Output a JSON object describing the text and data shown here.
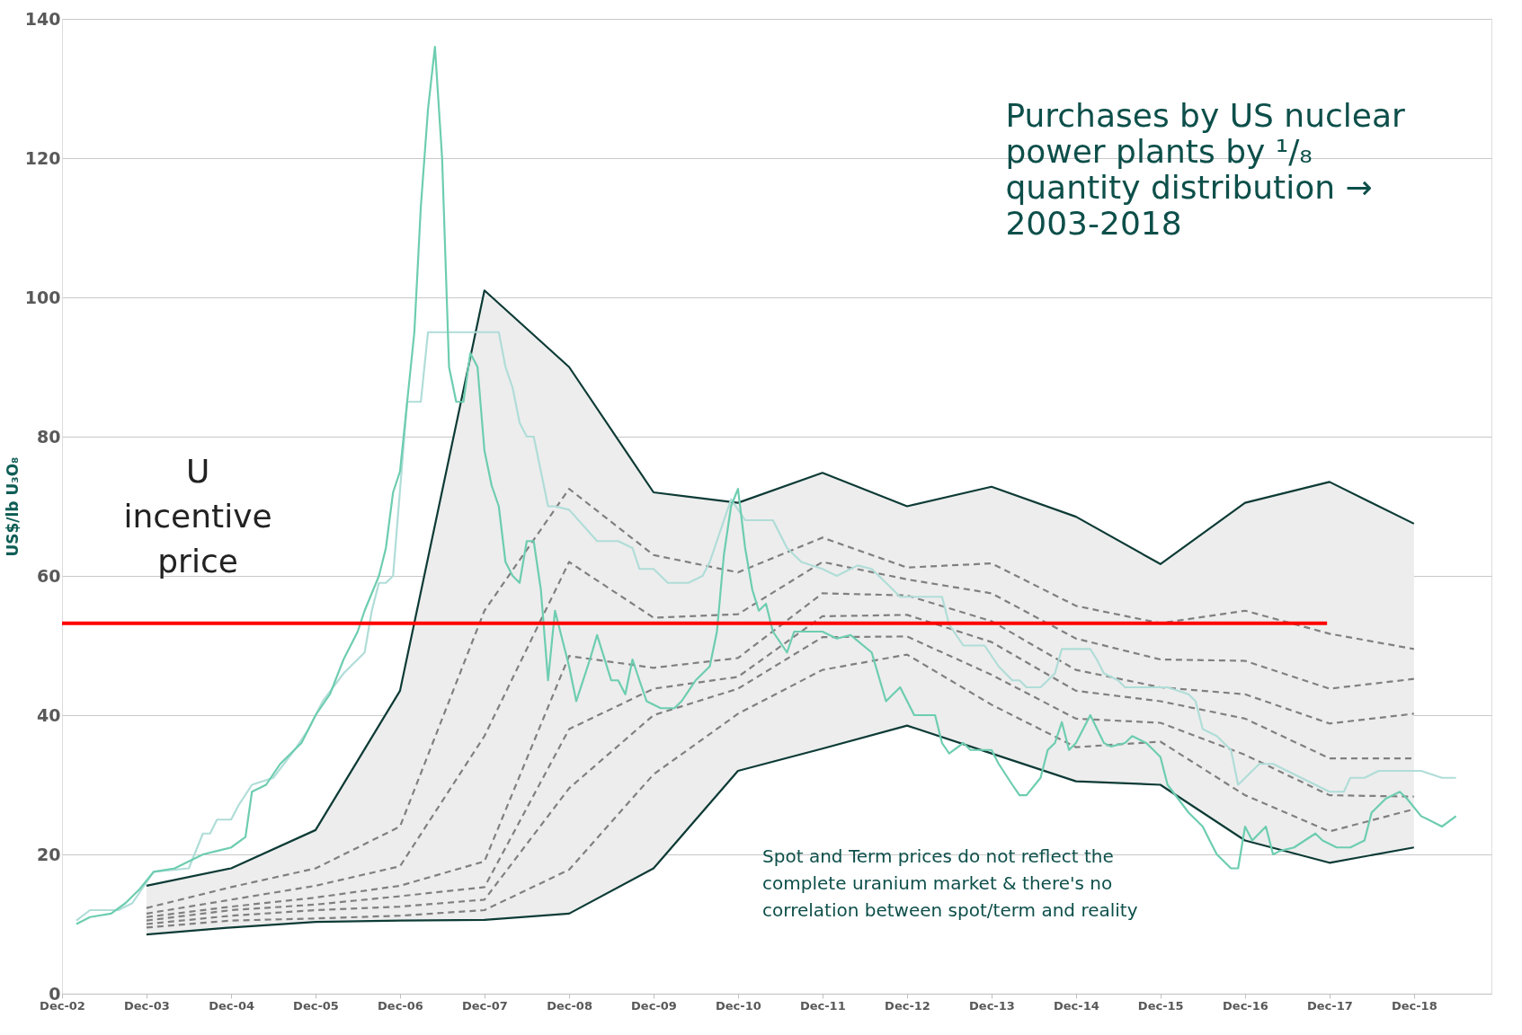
{
  "chart_data": {
    "type": "line",
    "ylabel": "US$/lb U₃O₈",
    "x": [
      "2003-12",
      "2004-12",
      "2005-12",
      "2006-12",
      "2007-12",
      "2008-12",
      "2009-12",
      "2010-12",
      "2011-12",
      "2012-12",
      "2013-12",
      "2014-12",
      "2015-12",
      "2016-12",
      "2017-12",
      "2018-12"
    ],
    "series": [
      {
        "color": "#0d3b36",
        "line_style": "solid",
        "values": [
          15.5,
          18,
          23.5,
          43.5,
          101,
          90,
          72,
          70.5,
          74.8,
          70,
          72.8,
          68.5,
          61.7,
          70.5,
          73.5,
          67.5
        ],
        "upper": [
          15.5,
          18,
          23.5,
          43.5,
          101,
          90,
          72,
          70.5,
          74.8,
          70,
          72.8,
          68.5,
          61.7,
          70.5,
          73.5,
          67.5
        ],
        "lower": [
          8.5,
          9.5,
          10.3,
          10.5,
          10.6,
          11.5,
          18,
          32,
          35.2,
          38.5,
          34.5,
          30.5,
          30,
          22,
          18.8,
          21
        ]
      },
      {
        "color": "#0d3b36",
        "line_style": "solid",
        "values": [
          8.5,
          9.5,
          10.3,
          10.5,
          10.6,
          11.5,
          18,
          32,
          35.2,
          38.5,
          34.5,
          30.5,
          30,
          22,
          18.8,
          21
        ]
      },
      {
        "color": "#808080",
        "line_style": "dashed",
        "values": [
          12.3,
          15.3,
          18,
          24,
          55,
          72.5,
          63,
          60.5,
          65.5,
          61.2,
          61.8,
          55.7,
          53.2,
          55,
          51.7,
          49.5
        ]
      },
      {
        "color": "#808080",
        "line_style": "dashed",
        "values": [
          11.5,
          13.5,
          15.5,
          18.3,
          37,
          62,
          54,
          54.5,
          62,
          59.5,
          57.5,
          51,
          48,
          47.8,
          43.8,
          45.2
        ]
      },
      {
        "color": "#808080",
        "line_style": "dashed",
        "values": [
          11,
          12.5,
          13.8,
          15.5,
          19,
          48.5,
          46.8,
          48.2,
          57.5,
          57.2,
          53.5,
          46.5,
          44,
          43,
          38.8,
          40.2
        ]
      },
      {
        "color": "#808080",
        "line_style": "dashed",
        "values": [
          10.5,
          12,
          12.8,
          14,
          15.3,
          38,
          43.8,
          45.5,
          54.2,
          54.4,
          50.5,
          43.5,
          42,
          39.5,
          33.8,
          33.8
        ]
      },
      {
        "color": "#808080",
        "line_style": "dashed",
        "values": [
          10,
          11.2,
          12,
          12.5,
          13.5,
          29.5,
          40,
          43.8,
          51.2,
          51.3,
          45.8,
          39.5,
          38.9,
          34.3,
          28.5,
          28.3
        ]
      },
      {
        "color": "#808080",
        "line_style": "dashed",
        "values": [
          9.5,
          10.5,
          10.8,
          11.2,
          12,
          17.8,
          31.5,
          40.2,
          46.5,
          48.7,
          41.5,
          35.4,
          36.2,
          28.5,
          23.3,
          26.5
        ]
      },
      {
        "color": "#b0ddd8",
        "line_style": "solid",
        "x": [
          "2003-02",
          "2003-04",
          "2003-08",
          "2003-10",
          "2003-12",
          "2004-01",
          "2004-06",
          "2004-08",
          "2004-09",
          "2004-10",
          "2004-12",
          "2005-01",
          "2005-03",
          "2005-06",
          "2005-09",
          "2005-11",
          "2006-01",
          "2006-04",
          "2006-05",
          "2006-07",
          "2006-08",
          "2006-09",
          "2006-10",
          "2006-11",
          "2007-01",
          "2007-03",
          "2007-04",
          "2008-02",
          "2008-03",
          "2008-04",
          "2008-05",
          "2008-06",
          "2008-07",
          "2008-09",
          "2008-10",
          "2008-12",
          "2009-04",
          "2009-07",
          "2009-09",
          "2009-10",
          "2009-12",
          "2010-02",
          "2010-05",
          "2010-07",
          "2010-08",
          "2010-11",
          "2011-01",
          "2011-03",
          "2011-05",
          "2011-07",
          "2011-09",
          "2011-12",
          "2012-02",
          "2012-05",
          "2012-07",
          "2012-09",
          "2012-11",
          "2013-05",
          "2013-06",
          "2013-08",
          "2013-11",
          "2014-01",
          "2014-03",
          "2014-04",
          "2014-05",
          "2014-07",
          "2014-09",
          "2014-10",
          "2015-02",
          "2015-03",
          "2015-04",
          "2015-06",
          "2015-07",
          "2016-01",
          "2016-04",
          "2016-05",
          "2016-06",
          "2016-08",
          "2016-10",
          "2016-11",
          "2017-01",
          "2017-02",
          "2017-04",
          "2017-06",
          "2017-08",
          "2017-10",
          "2017-12",
          "2018-02",
          "2018-03",
          "2018-05",
          "2018-07",
          "2018-11",
          "2019-01",
          "2019-04",
          "2019-06"
        ],
        "values": [
          10.5,
          12,
          12,
          13,
          16,
          17.5,
          18,
          23,
          23,
          25,
          25,
          27,
          30,
          31,
          35,
          38,
          42,
          46,
          47,
          49,
          55,
          59,
          59,
          60,
          85,
          85,
          95,
          95,
          90,
          87,
          82,
          80,
          80,
          70,
          70,
          69.5,
          65,
          65,
          64,
          61,
          61,
          59,
          59,
          60,
          62,
          71,
          68,
          68,
          68,
          64,
          62,
          61,
          60,
          61.5,
          61,
          59,
          57,
          57,
          53,
          50,
          50,
          47,
          45,
          45,
          44,
          44,
          46,
          49.5,
          49.5,
          48,
          46,
          45,
          44,
          44,
          43,
          42,
          38,
          37,
          35,
          30,
          32,
          33,
          33,
          32,
          31,
          30,
          29,
          29,
          31,
          31,
          32,
          32,
          32,
          31,
          31
        ]
      },
      {
        "color": "#6dcdb0",
        "line_style": "solid",
        "x": [
          "2003-02",
          "2003-04",
          "2003-07",
          "2003-09",
          "2003-11",
          "2004-01",
          "2004-04",
          "2004-06",
          "2004-08",
          "2004-10",
          "2004-12",
          "2005-02",
          "2005-03",
          "2005-05",
          "2005-07",
          "2005-10",
          "2005-12",
          "2006-02",
          "2006-04",
          "2006-06",
          "2006-07",
          "2006-09",
          "2006-10",
          "2006-11",
          "2006-12",
          "2007-01",
          "2007-02",
          "2007-03",
          "2007-04",
          "2007-05",
          "2007-06",
          "2007-07",
          "2007-08",
          "2007-09",
          "2007-10",
          "2007-11",
          "2007-12",
          "2008-01",
          "2008-02",
          "2008-03",
          "2008-04",
          "2008-05",
          "2008-06",
          "2008-07",
          "2008-08",
          "2008-09",
          "2008-10",
          "2008-12",
          "2009-01",
          "2009-03",
          "2009-04",
          "2009-06",
          "2009-07",
          "2009-08",
          "2009-09",
          "2009-10",
          "2009-11",
          "2010-01",
          "2010-03",
          "2010-04",
          "2010-06",
          "2010-08",
          "2010-09",
          "2010-10",
          "2010-11",
          "2010-12",
          "2011-01",
          "2011-02",
          "2011-03",
          "2011-04",
          "2011-05",
          "2011-07",
          "2011-08",
          "2011-10",
          "2011-12",
          "2012-02",
          "2012-04",
          "2012-07",
          "2012-09",
          "2012-10",
          "2012-11",
          "2013-01",
          "2013-02",
          "2013-04",
          "2013-05",
          "2013-06",
          "2013-08",
          "2013-09",
          "2013-10",
          "2013-12",
          "2014-01",
          "2014-03",
          "2014-04",
          "2014-05",
          "2014-07",
          "2014-08",
          "2014-09",
          "2014-10",
          "2014-11",
          "2014-12",
          "2015-02",
          "2015-04",
          "2015-05",
          "2015-07",
          "2015-08",
          "2015-10",
          "2015-11",
          "2015-12",
          "2016-01",
          "2016-04",
          "2016-06",
          "2016-07",
          "2016-08",
          "2016-10",
          "2016-11",
          "2016-12",
          "2017-01",
          "2017-03",
          "2017-04",
          "2017-05",
          "2017-07",
          "2017-10",
          "2017-11",
          "2018-01",
          "2018-03",
          "2018-05",
          "2018-06",
          "2018-08",
          "2018-10",
          "2018-11",
          "2019-01",
          "2019-02",
          "2019-04",
          "2019-06"
        ],
        "values": [
          10,
          11,
          11.5,
          13,
          15,
          17.5,
          18,
          19,
          20,
          20.5,
          21,
          22.5,
          29,
          30,
          33,
          36,
          40,
          43,
          48,
          52,
          55,
          60,
          64,
          72,
          75,
          85,
          95,
          113,
          127,
          136,
          120,
          90,
          85,
          85,
          92,
          90,
          78,
          73,
          70,
          62,
          60,
          59,
          65,
          65,
          58,
          45,
          55,
          47,
          42,
          48,
          51.5,
          45,
          45,
          43,
          48,
          45,
          42,
          41,
          41,
          42,
          45,
          47,
          52,
          63,
          70,
          72.5,
          64,
          58,
          55,
          56,
          52,
          49,
          52,
          52,
          52,
          51,
          51.5,
          49,
          42,
          43,
          44,
          40,
          40,
          40,
          36,
          34.5,
          36,
          35,
          35,
          35,
          33,
          30,
          28.5,
          28.5,
          31,
          35,
          36,
          39,
          35,
          36,
          40,
          36,
          35.5,
          36,
          37,
          36,
          35,
          34,
          30,
          26,
          24,
          22,
          20,
          18,
          18,
          24,
          22,
          24,
          20,
          20.5,
          21,
          23,
          22,
          21,
          21,
          22,
          26,
          28,
          29,
          28,
          25.5,
          25,
          24,
          25.5
        ]
      }
    ],
    "xlim": [
      "2002-12",
      "2019-11"
    ],
    "xticks": [
      {
        "value": "2002-12",
        "label": "Dec-02"
      },
      {
        "value": "2003-12",
        "label": "Dec-03"
      },
      {
        "value": "2004-12",
        "label": "Dec-04"
      },
      {
        "value": "2005-12",
        "label": "Dec-05"
      },
      {
        "value": "2006-12",
        "label": "Dec-06"
      },
      {
        "value": "2007-12",
        "label": "Dec-07"
      },
      {
        "value": "2008-12",
        "label": "Dec-08"
      },
      {
        "value": "2009-12",
        "label": "Dec-09"
      },
      {
        "value": "2010-12",
        "label": "Dec-10"
      },
      {
        "value": "2011-12",
        "label": "Dec-11"
      },
      {
        "value": "2012-12",
        "label": "Dec-12"
      },
      {
        "value": "2013-12",
        "label": "Dec-13"
      },
      {
        "value": "2014-12",
        "label": "Dec-14"
      },
      {
        "value": "2015-12",
        "label": "Dec-15"
      },
      {
        "value": "2016-12",
        "label": "Dec-16"
      },
      {
        "value": "2017-12",
        "label": "Dec-17"
      },
      {
        "value": "2018-12",
        "label": "Dec-18"
      }
    ],
    "ylim": [
      0,
      140
    ],
    "yticks": [
      0,
      20,
      40,
      60,
      80,
      100,
      120,
      140
    ],
    "grid": "y",
    "marker": "none",
    "ref_lines": [
      {
        "axis": "y",
        "value": 53.2,
        "label": "U incentive price",
        "color": "#ff0000"
      }
    ],
    "annotations": [
      "Purchases by US nuclear power plants by ¹/₈ quantity distribution → 2003-2018",
      "Spot and Term prices do not reflect the complete uranium market & there's no correlation between spot/term and reality"
    ]
  }
}
